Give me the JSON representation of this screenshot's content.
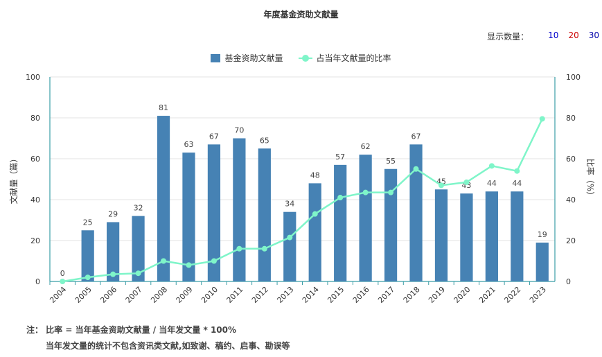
{
  "title": "年度基金资助文献量",
  "display_count": {
    "label": "显示数量：",
    "options": [
      {
        "label": "10",
        "color": "#0000cc"
      },
      {
        "label": "20",
        "color": "#cc0000"
      },
      {
        "label": "30",
        "color": "#0000aa"
      }
    ]
  },
  "legend": {
    "bar_label": "基金资助文献量",
    "line_label": "占当年文献量的比率"
  },
  "notes": {
    "line1": "注：  比率 = 当年基金资助文献量 / 当年发文量 * 100%",
    "line2": "当年发文量的统计不包含资讯类文献,如致谢、稿约、启事、勘误等"
  },
  "chart_data": {
    "type": "bar",
    "categories": [
      "2004",
      "2005",
      "2006",
      "2007",
      "2008",
      "2009",
      "2010",
      "2011",
      "2012",
      "2013",
      "2014",
      "2015",
      "2016",
      "2017",
      "2018",
      "2019",
      "2020",
      "2021",
      "2022",
      "2023"
    ],
    "series": [
      {
        "name": "基金资助文献量",
        "type": "bar",
        "color": "#4682b4",
        "values": [
          0,
          25,
          29,
          32,
          81,
          63,
          67,
          70,
          65,
          34,
          48,
          57,
          62,
          55,
          67,
          45,
          43,
          44,
          44,
          19
        ]
      },
      {
        "name": "占当年文献量的比率",
        "type": "line",
        "color": "#7ff5c9",
        "values": [
          0,
          2,
          3.5,
          4,
          10,
          8,
          10,
          16,
          16,
          21.5,
          33,
          41,
          43.5,
          43.5,
          55,
          47,
          48.5,
          56.5,
          54,
          79.5
        ]
      }
    ],
    "ylabel_left": "文献量（篇）",
    "ylabel_right": "比率（%）",
    "ylim_left": [
      0,
      100
    ],
    "ylim_right": [
      0,
      100
    ],
    "yticks": [
      0,
      20,
      40,
      60,
      80,
      100
    ],
    "grid": true
  }
}
